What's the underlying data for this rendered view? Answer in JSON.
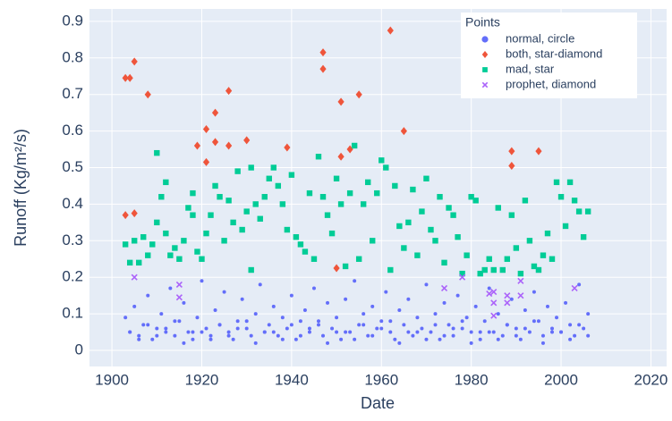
{
  "chart_data": {
    "type": "scatter",
    "xlabel": "Date",
    "ylabel": "Runoff (Kg/m²/s)",
    "xlim": [
      1895,
      2023.5
    ],
    "ylim": [
      -0.044,
      0.934
    ],
    "xticks": [
      1900,
      1920,
      1940,
      1960,
      1980,
      2000,
      2020
    ],
    "yticks": [
      0,
      0.1,
      0.2,
      0.3,
      0.4,
      0.5,
      0.6,
      0.7,
      0.8,
      0.9
    ],
    "grid": true,
    "legend_title": "Points",
    "legend_position": "top right",
    "series": [
      {
        "name": "normal, circle",
        "color": "#636efa",
        "symbol": "circle",
        "x": [
          1903,
          1904,
          1905,
          1906,
          1907,
          1908,
          1909,
          1910,
          1911,
          1912,
          1913,
          1914,
          1915,
          1916,
          1917,
          1918,
          1919,
          1920,
          1921,
          1922,
          1923,
          1924,
          1925,
          1926,
          1927,
          1928,
          1929,
          1930,
          1931,
          1932,
          1933,
          1934,
          1935,
          1936,
          1937,
          1938,
          1939,
          1940,
          1941,
          1942,
          1943,
          1944,
          1945,
          1946,
          1947,
          1948,
          1949,
          1950,
          1951,
          1952,
          1953,
          1954,
          1955,
          1956,
          1957,
          1958,
          1959,
          1960,
          1961,
          1962,
          1963,
          1964,
          1965,
          1966,
          1967,
          1968,
          1969,
          1970,
          1971,
          1972,
          1973,
          1974,
          1975,
          1976,
          1977,
          1978,
          1979,
          1980,
          1981,
          1982,
          1983,
          1984,
          1985,
          1986,
          1987,
          1988,
          1989,
          1990,
          1991,
          1992,
          1993,
          1994,
          1995,
          1996,
          1997,
          1998,
          1999,
          2000,
          2001,
          2002,
          2003,
          2004,
          2005,
          2006,
          1904,
          1906,
          1908,
          1910,
          1912,
          1914,
          1916,
          1918,
          1920,
          1922,
          1924,
          1926,
          1928,
          1930,
          1932,
          1934,
          1936,
          1938,
          1940,
          1942,
          1944,
          1946,
          1948,
          1950,
          1952,
          1954,
          1956,
          1958,
          1960,
          1962,
          1964,
          1966,
          1968,
          1970,
          1972,
          1974,
          1976,
          1978,
          1980,
          1982,
          1984,
          1986,
          1988,
          1990,
          1992,
          1994,
          1996,
          1998,
          2000,
          2002,
          2004,
          2006
        ],
        "values": [
          0.09,
          0.05,
          0.12,
          0.04,
          0.07,
          0.15,
          0.03,
          0.06,
          0.1,
          0.05,
          0.17,
          0.04,
          0.08,
          0.13,
          0.05,
          0.03,
          0.09,
          0.19,
          0.06,
          0.04,
          0.11,
          0.07,
          0.16,
          0.05,
          0.03,
          0.08,
          0.14,
          0.06,
          0.04,
          0.1,
          0.18,
          0.05,
          0.07,
          0.12,
          0.04,
          0.09,
          0.06,
          0.15,
          0.03,
          0.08,
          0.11,
          0.05,
          0.17,
          0.07,
          0.04,
          0.13,
          0.06,
          0.09,
          0.03,
          0.14,
          0.05,
          0.19,
          0.07,
          0.1,
          0.04,
          0.12,
          0.06,
          0.08,
          0.16,
          0.05,
          0.03,
          0.11,
          0.07,
          0.14,
          0.04,
          0.09,
          0.06,
          0.18,
          0.05,
          0.1,
          0.03,
          0.13,
          0.07,
          0.04,
          0.15,
          0.06,
          0.09,
          0.05,
          0.12,
          0.03,
          0.08,
          0.17,
          0.05,
          0.1,
          0.04,
          0.07,
          0.14,
          0.06,
          0.03,
          0.11,
          0.05,
          0.16,
          0.08,
          0.04,
          0.12,
          0.06,
          0.09,
          0.05,
          0.13,
          0.07,
          0.04,
          0.18,
          0.06,
          0.1,
          0.05,
          0.03,
          0.07,
          0.04,
          0.06,
          0.08,
          0.02,
          0.05,
          0.05,
          0.03,
          0.07,
          0.04,
          0.06,
          0.08,
          0.02,
          0.05,
          0.05,
          0.03,
          0.07,
          0.04,
          0.06,
          0.08,
          0.02,
          0.05,
          0.05,
          0.03,
          0.07,
          0.04,
          0.06,
          0.08,
          0.02,
          0.05,
          0.05,
          0.03,
          0.07,
          0.04,
          0.06,
          0.08,
          0.02,
          0.05,
          0.05,
          0.03,
          0.07,
          0.04,
          0.06,
          0.08,
          0.02,
          0.05,
          0.05,
          0.03,
          0.07,
          0.04
        ]
      },
      {
        "name": "both, star-diamond",
        "color": "#ef553b",
        "symbol": "diamond",
        "x": [
          1903,
          1903,
          1904,
          1905,
          1905,
          1908,
          1919,
          1921,
          1921,
          1923,
          1923,
          1926,
          1926,
          1930,
          1939,
          1947,
          1947,
          1950,
          1951,
          1951,
          1953,
          1955,
          1962,
          1965,
          1989,
          1989,
          1995
        ],
        "values": [
          0.37,
          0.745,
          0.745,
          0.79,
          0.375,
          0.7,
          0.56,
          0.605,
          0.515,
          0.65,
          0.57,
          0.71,
          0.56,
          0.575,
          0.555,
          0.815,
          0.77,
          0.225,
          0.68,
          0.53,
          0.55,
          0.7,
          0.875,
          0.6,
          0.545,
          0.505,
          0.545
        ]
      },
      {
        "name": "mad, star",
        "color": "#00cc96",
        "symbol": "square",
        "x": [
          1903,
          1904,
          1905,
          1906,
          1907,
          1908,
          1909,
          1910,
          1910,
          1911,
          1912,
          1912,
          1913,
          1914,
          1915,
          1916,
          1917,
          1918,
          1918,
          1919,
          1920,
          1921,
          1922,
          1923,
          1924,
          1925,
          1926,
          1927,
          1928,
          1929,
          1930,
          1931,
          1931,
          1932,
          1933,
          1934,
          1935,
          1936,
          1937,
          1938,
          1939,
          1940,
          1941,
          1942,
          1943,
          1944,
          1945,
          1946,
          1947,
          1948,
          1949,
          1950,
          1951,
          1952,
          1953,
          1954,
          1955,
          1956,
          1957,
          1958,
          1959,
          1960,
          1961,
          1962,
          1963,
          1964,
          1965,
          1966,
          1967,
          1968,
          1969,
          1970,
          1971,
          1972,
          1973,
          1974,
          1975,
          1976,
          1977,
          1978,
          1979,
          1980,
          1981,
          1982,
          1983,
          1984,
          1985,
          1986,
          1987,
          1988,
          1989,
          1990,
          1991,
          1992,
          1993,
          1994,
          1995,
          1996,
          1997,
          1998,
          1999,
          2000,
          2001,
          2002,
          2003,
          2004,
          2005,
          2006
        ],
        "values": [
          0.29,
          0.24,
          0.3,
          0.24,
          0.31,
          0.26,
          0.29,
          0.54,
          0.35,
          0.42,
          0.46,
          0.32,
          0.26,
          0.28,
          0.25,
          0.3,
          0.39,
          0.37,
          0.43,
          0.27,
          0.25,
          0.32,
          0.37,
          0.45,
          0.42,
          0.3,
          0.41,
          0.35,
          0.49,
          0.33,
          0.38,
          0.5,
          0.22,
          0.4,
          0.36,
          0.42,
          0.47,
          0.5,
          0.45,
          0.4,
          0.33,
          0.48,
          0.31,
          0.29,
          0.27,
          0.43,
          0.25,
          0.53,
          0.42,
          0.37,
          0.32,
          0.47,
          0.4,
          0.23,
          0.43,
          0.56,
          0.25,
          0.4,
          0.46,
          0.3,
          0.43,
          0.52,
          0.5,
          0.22,
          0.45,
          0.34,
          0.28,
          0.35,
          0.44,
          0.26,
          0.38,
          0.47,
          0.33,
          0.3,
          0.42,
          0.24,
          0.39,
          0.37,
          0.31,
          0.21,
          0.26,
          0.42,
          0.41,
          0.21,
          0.22,
          0.25,
          0.22,
          0.39,
          0.22,
          0.25,
          0.37,
          0.28,
          0.21,
          0.41,
          0.3,
          0.23,
          0.22,
          0.26,
          0.32,
          0.25,
          0.46,
          0.42,
          0.34,
          0.46,
          0.41,
          0.38,
          0.31,
          0.38
        ]
      },
      {
        "name": "prophet, diamond",
        "color": "#ab63fa",
        "symbol": "x",
        "x": [
          1905,
          1915,
          1915,
          1974,
          1978,
          1984,
          1985,
          1985,
          1985,
          1988,
          1988,
          1991,
          1991,
          2003
        ],
        "values": [
          0.2,
          0.18,
          0.145,
          0.17,
          0.2,
          0.155,
          0.16,
          0.13,
          0.095,
          0.15,
          0.13,
          0.19,
          0.15,
          0.17
        ]
      }
    ]
  }
}
